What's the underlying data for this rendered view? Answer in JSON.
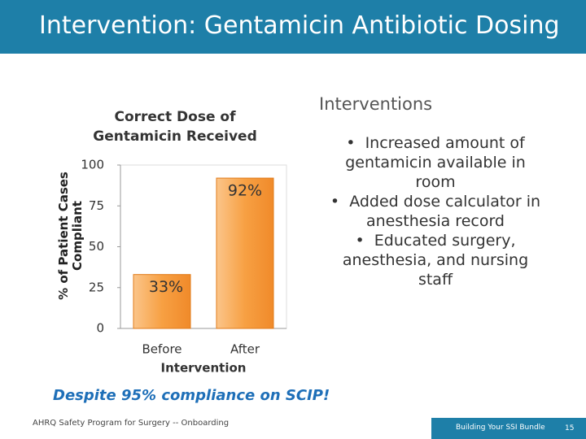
{
  "slide": {
    "title": "Intervention: Gentamicin Antibiotic Dosing",
    "heading": "Interventions",
    "bullets": [
      "Increased amount of gentamicin available in room",
      "Added dose calculator in anesthesia record",
      "Educated surgery, anesthesia, and nursing staff"
    ],
    "callout": "Despite 95% compliance on SCIP!",
    "footer_left": "AHRQ Safety Program for Surgery -- Onboarding",
    "footer_right": "Building Your SSI Bundle",
    "page_number": "15"
  },
  "chart_data": {
    "type": "bar",
    "title": "Correct Dose of Gentamicin Received",
    "y_label": "% of Patient Cases Compliant",
    "x_label": "Intervention",
    "categories": [
      "Before",
      "After"
    ],
    "values": [
      33,
      92
    ],
    "value_labels": [
      "33%",
      "92%"
    ],
    "color": "#f7a043",
    "ylim": [
      0,
      100
    ],
    "yticks": [
      0,
      25,
      50,
      75,
      100
    ]
  }
}
